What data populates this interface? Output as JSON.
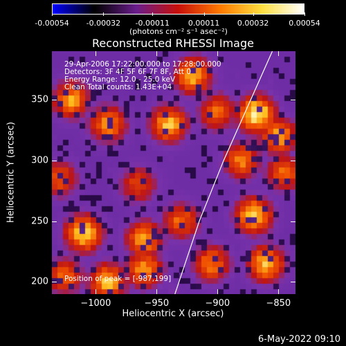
{
  "colorbar": {
    "tick_labels": [
      "-0.00054",
      "-0.00032",
      "-0.00011",
      "0.00011",
      "0.00032",
      "0.00054"
    ],
    "units": "(photons cm⁻² s⁻¹ asec⁻²)",
    "colors": [
      "#0000ff",
      "#000000",
      "#6a1e8c",
      "#c8100a",
      "#ff7a00",
      "#ffe040",
      "#ffffff"
    ]
  },
  "plot": {
    "title": "Reconstructed RHESSI Image",
    "info_lines": [
      "29-Apr-2006 17:22:00.000 to 17:28:00.000",
      "Detectors: 3F 4F 5F 6F 7F 8F, Att 0",
      "Energy Range: 12.0 - 25.0 keV",
      "Clean     Total counts: 1.43E+04"
    ],
    "position_label": "Position of peak = [-987,199]"
  },
  "axes": {
    "x_title": "Heliocentric X (arcsec)",
    "y_title": "Heliocentric Y (arcsec)",
    "x_ticks": [
      {
        "label": "−1000",
        "value": -1000
      },
      {
        "label": "−950",
        "value": -950
      },
      {
        "label": "−900",
        "value": -900
      },
      {
        "label": "−850",
        "value": -850
      }
    ],
    "y_ticks": [
      {
        "label": "350",
        "value": 350
      },
      {
        "label": "300",
        "value": 300
      },
      {
        "label": "250",
        "value": 250
      },
      {
        "label": "200",
        "value": 200
      }
    ],
    "x_range": [
      -1036,
      -836
    ],
    "y_range": [
      190,
      390
    ]
  },
  "footer": {
    "timestamp": "6-May-2022 09:10"
  },
  "chart_data": {
    "type": "heatmap",
    "title": "Reconstructed RHESSI Image",
    "xlabel": "Heliocentric X (arcsec)",
    "ylabel": "Heliocentric Y (arcsec)",
    "xlim": [
      -1036,
      -836
    ],
    "ylim": [
      190,
      390
    ],
    "value_range": [
      -0.00054,
      0.00054
    ],
    "grid": false,
    "peak_position": [
      -987,
      199
    ],
    "bright_sources": [
      {
        "x": -868,
        "y": 338,
        "level": 1.0
      },
      {
        "x": -850,
        "y": 320,
        "level": 0.75
      },
      {
        "x": -870,
        "y": 255,
        "level": 0.85
      },
      {
        "x": -920,
        "y": 370,
        "level": 0.8
      },
      {
        "x": -940,
        "y": 330,
        "level": 0.8
      },
      {
        "x": -1010,
        "y": 240,
        "level": 0.9
      },
      {
        "x": -1020,
        "y": 350,
        "level": 0.75
      },
      {
        "x": -990,
        "y": 330,
        "level": 0.7
      },
      {
        "x": -960,
        "y": 235,
        "level": 0.75
      },
      {
        "x": -930,
        "y": 250,
        "level": 0.6
      },
      {
        "x": -990,
        "y": 200,
        "level": 0.8
      },
      {
        "x": -960,
        "y": 210,
        "level": 0.7
      },
      {
        "x": -860,
        "y": 215,
        "level": 0.8
      },
      {
        "x": -905,
        "y": 215,
        "level": 0.65
      },
      {
        "x": -880,
        "y": 300,
        "level": 0.65
      },
      {
        "x": -845,
        "y": 290,
        "level": 0.6
      },
      {
        "x": -965,
        "y": 280,
        "level": 0.5
      },
      {
        "x": -1025,
        "y": 205,
        "level": 0.6
      },
      {
        "x": -1030,
        "y": 285,
        "level": 0.55
      },
      {
        "x": -900,
        "y": 340,
        "level": 0.6
      }
    ],
    "limb_curve": [
      {
        "x": -935,
        "y": 190
      },
      {
        "x": -915,
        "y": 250
      },
      {
        "x": -895,
        "y": 300
      },
      {
        "x": -875,
        "y": 345
      },
      {
        "x": -855,
        "y": 390
      }
    ]
  }
}
